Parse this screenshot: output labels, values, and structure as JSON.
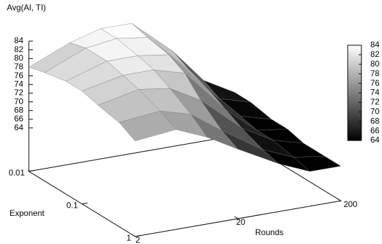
{
  "chart_data": {
    "type": "surface",
    "zlabel": "Avg(AI, TI)",
    "xlabel": "Rounds",
    "ylabel": "Exponent",
    "x": [
      2,
      5,
      10,
      20,
      50,
      100,
      200
    ],
    "y": [
      0.01,
      0.02,
      0.05,
      0.1,
      0.2,
      0.5,
      1
    ],
    "z": [
      [
        78,
        82,
        84,
        84,
        76,
        68,
        64
      ],
      [
        79,
        83,
        84,
        83,
        74,
        66,
        64
      ],
      [
        80,
        83,
        83,
        82,
        72,
        65,
        63
      ],
      [
        80,
        82,
        82,
        80,
        70,
        64,
        63
      ],
      [
        79,
        81,
        80,
        76,
        68,
        64,
        62
      ],
      [
        78,
        79,
        77,
        72,
        66,
        63,
        62
      ],
      [
        76,
        77,
        74,
        70,
        65,
        62,
        62
      ]
    ],
    "xlim": [
      2,
      200
    ],
    "xticks": [
      2,
      20,
      200
    ],
    "xlog": true,
    "ylim": [
      0.01,
      1
    ],
    "yticks": [
      0.01,
      0.1,
      1
    ],
    "ylog": true,
    "zlim": [
      54,
      84
    ],
    "zticks": [
      64,
      66,
      68,
      70,
      72,
      74,
      76,
      78,
      80,
      82,
      84
    ],
    "cblim": [
      64,
      84
    ],
    "cbticks": [
      64,
      66,
      68,
      70,
      72,
      74,
      76,
      78,
      80,
      82,
      84
    ]
  }
}
